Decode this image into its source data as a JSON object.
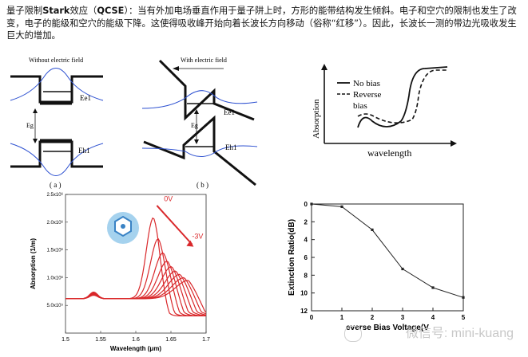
{
  "intro": {
    "part1": "量子限制",
    "bold1": "Stark",
    "part2": "效应（",
    "bold2": "QCSE",
    "part3": "）：当有外加电场垂直作用于量子阱上时，方形的能带结构发生倾斜。电子和空穴的限制也发生了改变，电子的能级和空穴的能级下降。这使得吸收峰开始向着长波长方向移动（俗称“红移”）。因此，长波长一测的带边光吸收发生巨大的增加。"
  },
  "diagram_a": {
    "title": "Without electric field",
    "e1": "Ee1",
    "eg": "Eg",
    "h1": "Eh1",
    "caption": "( a )"
  },
  "diagram_b": {
    "title": "With electric field",
    "e1": "Ee1",
    "eg": "Eg",
    "h1": "Eh1",
    "caption": "( b )"
  },
  "chart_data": [
    {
      "type": "line",
      "title": "",
      "xlabel": "wavelength",
      "ylabel": "Absorption",
      "series": [
        {
          "name": "No bias",
          "style": "solid"
        },
        {
          "name": "Reverse bias",
          "style": "dashed"
        }
      ],
      "legend": [
        "No bias",
        "Reverse",
        "bias"
      ]
    },
    {
      "type": "line",
      "xlabel": "Wavelength (μm)",
      "ylabel": "Absorption (1/m)",
      "xlim": [
        1.5,
        1.7
      ],
      "ylim": [
        0,
        2500000.0
      ],
      "xticks": [
        "1.5",
        "1.55",
        "1.6",
        "1.65",
        "1.7"
      ],
      "yticks": [
        "5.0x10⁵",
        "1.0x10⁶",
        "1.5x10⁶",
        "2.0x10⁶",
        "2.5x10⁶"
      ],
      "annotations": [
        "0V",
        "-3V"
      ],
      "series_note": "family of absorption spectra from 0V to -3V, peak red-shifting and decreasing",
      "peaks": [
        {
          "x": 1.625,
          "y": 2080000.0
        },
        {
          "x": 1.632,
          "y": 1700000.0
        },
        {
          "x": 1.639,
          "y": 1450000.0
        },
        {
          "x": 1.645,
          "y": 1300000.0
        },
        {
          "x": 1.651,
          "y": 1200000.0
        },
        {
          "x": 1.657,
          "y": 1120000.0
        },
        {
          "x": 1.663,
          "y": 1060000.0
        },
        {
          "x": 1.669,
          "y": 1000000.0
        },
        {
          "x": 1.675,
          "y": 950000.0
        }
      ],
      "color": "#d9282b"
    },
    {
      "type": "line",
      "xlabel": "Reverse Bias Voltage (V)",
      "xlabel_visible": "everse Bias Voltage(V",
      "ylabel": "Extinction Ratio(dB)",
      "xlim": [
        0,
        5
      ],
      "ylim": [
        0,
        12
      ],
      "y_inverted": true,
      "xticks": [
        "0",
        "1",
        "2",
        "3",
        "4",
        "5"
      ],
      "yticks": [
        "0",
        "2",
        "4",
        "6",
        "8",
        "10",
        "12"
      ],
      "x": [
        0,
        1,
        2,
        3,
        4,
        5
      ],
      "y": [
        0,
        0.3,
        2.9,
        7.3,
        9.4,
        10.5
      ]
    }
  ],
  "watermark": "微信号: mini-kuang"
}
